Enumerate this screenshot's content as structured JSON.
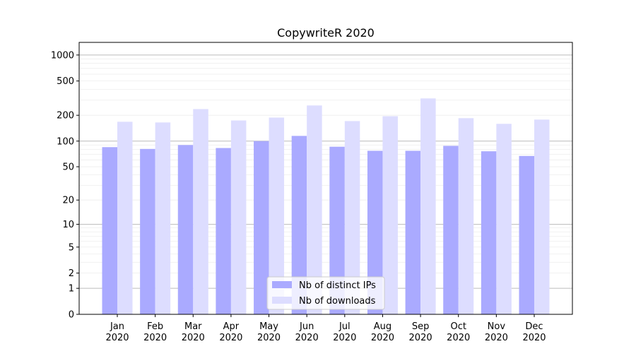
{
  "chart_data": {
    "type": "bar",
    "title": "CopywriteR 2020",
    "xlabel": "",
    "ylabel": "",
    "yscale": "log10(1+y)",
    "ylim": [
      0,
      1400
    ],
    "yticks": [
      0,
      1,
      2,
      5,
      10,
      20,
      50,
      100,
      200,
      500,
      1000
    ],
    "grid": true,
    "legend_position": "bottom-center",
    "categories": [
      "Jan\n2020",
      "Feb\n2020",
      "Mar\n2020",
      "Apr\n2020",
      "May\n2020",
      "Jun\n2020",
      "Jul\n2020",
      "Aug\n2020",
      "Sep\n2020",
      "Oct\n2020",
      "Nov\n2020",
      "Dec\n2020"
    ],
    "series": [
      {
        "name": "Nb of distinct IPs",
        "color": "#aaaaff",
        "values": [
          85,
          81,
          90,
          83,
          100,
          115,
          86,
          77,
          77,
          88,
          76,
          67
        ]
      },
      {
        "name": "Nb of downloads",
        "color": "#ddddff",
        "values": [
          168,
          165,
          236,
          174,
          188,
          260,
          171,
          195,
          314,
          185,
          159,
          178
        ]
      }
    ]
  }
}
